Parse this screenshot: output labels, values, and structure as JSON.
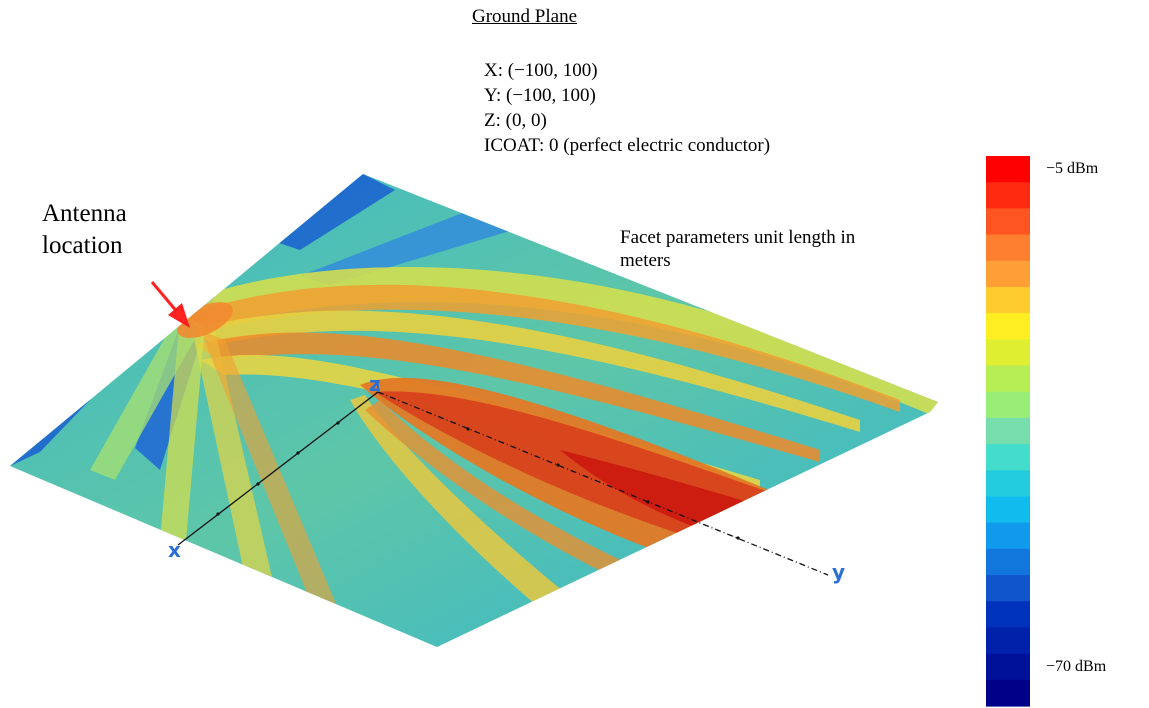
{
  "title": "Ground Plane",
  "params": {
    "x": "X: (−100, 100)",
    "y": "Y: (−100, 100)",
    "z": "Z: (0, 0)",
    "icoat": "ICOAT: 0 (perfect electric conductor)"
  },
  "antenna_label_line1": "Antenna",
  "antenna_label_line2": "location",
  "facet_note": "Facet parameters unit length in meters",
  "colorbar": {
    "max_label": "−5 dBm",
    "min_label": "−70 dBm",
    "colors": [
      "#ff0000",
      "#ff2a10",
      "#ff5522",
      "#ff7f30",
      "#ff9f35",
      "#ffcc30",
      "#ffee22",
      "#dfee30",
      "#b8ee55",
      "#99ee77",
      "#77ddaa",
      "#44ddcc",
      "#22ccdd",
      "#11bbee",
      "#1199ee",
      "#1177dd",
      "#1155cc",
      "#0033bb",
      "#0022aa",
      "#001199",
      "#000088"
    ]
  },
  "axes": {
    "x": "x",
    "y": "y",
    "z": "z"
  },
  "colors": {
    "arrow": "#ff2020",
    "axis_label": "#2a6fd8"
  }
}
